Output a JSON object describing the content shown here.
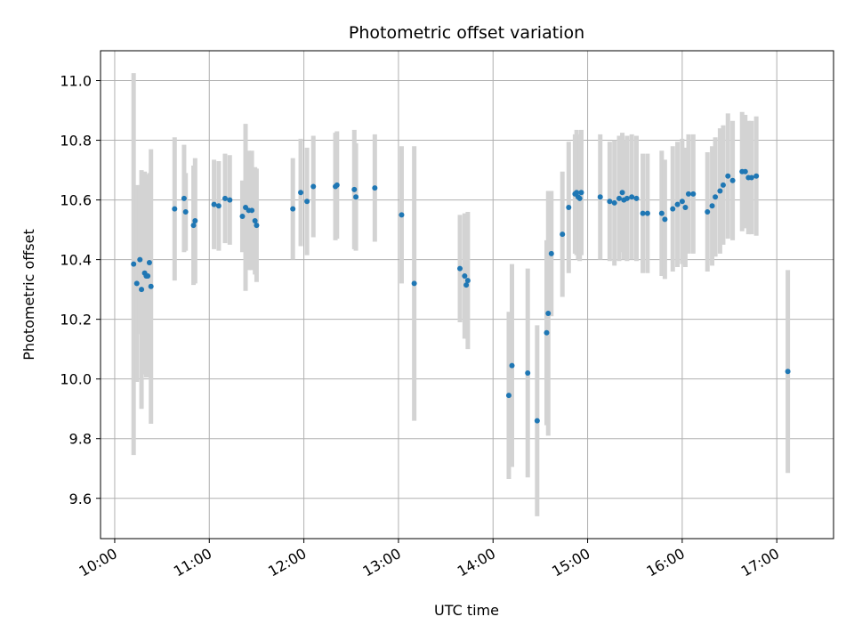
{
  "chart_data": {
    "type": "scatter",
    "title": "Photometric offset variation",
    "xlabel": "UTC time",
    "ylabel": "Photometric offset",
    "x_ticks": [
      "10:00",
      "11:00",
      "12:00",
      "13:00",
      "14:00",
      "15:00",
      "16:00",
      "17:00"
    ],
    "x_tick_hours": [
      10,
      11,
      12,
      13,
      14,
      15,
      16,
      17
    ],
    "y_ticks": [
      "9.6",
      "9.8",
      "10.0",
      "10.2",
      "10.4",
      "10.6",
      "10.8",
      "11.0"
    ],
    "y_tick_values": [
      9.6,
      9.8,
      10.0,
      10.2,
      10.4,
      10.6,
      10.8,
      11.0
    ],
    "xlim": [
      "09:51",
      "17:36"
    ],
    "ylim": [
      9.465,
      11.1
    ],
    "grid": true,
    "point_color": "#1f77b4",
    "errorbar_color": "#d3d3d3",
    "series": [
      {
        "x": [
          "10:12",
          "10:14",
          "10:16",
          "10:17",
          "10:19",
          "10:20",
          "10:22",
          "10:21",
          "10:23",
          "10:38",
          "10:44",
          "10:45",
          "10:50",
          "10:51",
          "11:03",
          "11:06",
          "11:10",
          "11:13",
          "11:21",
          "11:23",
          "11:25",
          "11:27",
          "11:29",
          "11:30",
          "11:53",
          "11:58",
          "12:02",
          "12:06",
          "12:20",
          "12:21",
          "12:32",
          "12:33",
          "12:45",
          "13:02",
          "13:10",
          "13:39",
          "13:42",
          "13:43",
          "13:44",
          "14:10",
          "14:12",
          "14:22",
          "14:28",
          "14:34",
          "14:35",
          "14:37",
          "14:44",
          "14:48",
          "14:52",
          "14:53",
          "14:54",
          "14:55",
          "14:56",
          "15:08",
          "15:14",
          "15:17",
          "15:20",
          "15:22",
          "15:23",
          "15:25",
          "15:28",
          "15:31",
          "15:35",
          "15:38",
          "15:47",
          "15:49",
          "15:54",
          "15:57",
          "16:00",
          "16:02",
          "16:04",
          "16:07",
          "16:16",
          "16:19",
          "16:21",
          "16:24",
          "16:26",
          "16:29",
          "16:32",
          "16:38",
          "16:40",
          "16:42",
          "16:44",
          "16:47",
          "17:07"
        ],
        "y": [
          10.385,
          10.32,
          10.4,
          10.3,
          10.355,
          10.345,
          10.39,
          10.345,
          10.31,
          10.57,
          10.605,
          10.56,
          10.515,
          10.53,
          10.585,
          10.58,
          10.605,
          10.6,
          10.545,
          10.575,
          10.565,
          10.565,
          10.53,
          10.515,
          10.57,
          10.625,
          10.595,
          10.645,
          10.645,
          10.65,
          10.635,
          10.61,
          10.64,
          10.55,
          10.32,
          10.37,
          10.345,
          10.315,
          10.33,
          9.945,
          10.045,
          10.02,
          9.86,
          10.155,
          10.22,
          10.42,
          10.485,
          10.575,
          10.62,
          10.625,
          10.61,
          10.605,
          10.625,
          10.61,
          10.595,
          10.59,
          10.605,
          10.625,
          10.6,
          10.605,
          10.61,
          10.605,
          10.555,
          10.555,
          10.555,
          10.535,
          10.57,
          10.585,
          10.595,
          10.575,
          10.62,
          10.62,
          10.56,
          10.58,
          10.61,
          10.63,
          10.65,
          10.68,
          10.665,
          10.695,
          10.695,
          10.675,
          10.675,
          10.68,
          10.025
        ],
        "err": [
          0.64,
          0.33,
          0.25,
          0.4,
          0.34,
          0.34,
          0.3,
          0.34,
          0.46,
          0.24,
          0.18,
          0.13,
          0.2,
          0.21,
          0.15,
          0.15,
          0.15,
          0.15,
          0.12,
          0.28,
          0.2,
          0.2,
          0.18,
          0.19,
          0.17,
          0.18,
          0.18,
          0.17,
          0.18,
          0.18,
          0.2,
          0.18,
          0.18,
          0.23,
          0.46,
          0.18,
          0.21,
          0.18,
          0.23,
          0.28,
          0.34,
          0.35,
          0.32,
          0.31,
          0.41,
          0.21,
          0.21,
          0.22,
          0.2,
          0.21,
          0.21,
          0.21,
          0.21,
          0.21,
          0.2,
          0.21,
          0.21,
          0.2,
          0.2,
          0.21,
          0.21,
          0.21,
          0.2,
          0.2,
          0.21,
          0.2,
          0.21,
          0.21,
          0.21,
          0.2,
          0.2,
          0.2,
          0.2,
          0.2,
          0.2,
          0.21,
          0.2,
          0.21,
          0.2,
          0.2,
          0.19,
          0.19,
          0.19,
          0.2,
          0.34
        ]
      }
    ]
  }
}
